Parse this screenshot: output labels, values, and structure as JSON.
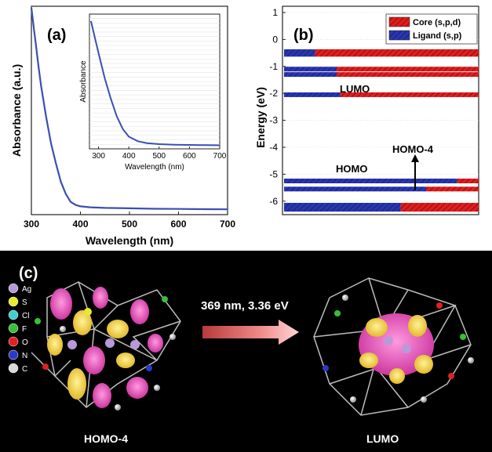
{
  "chart_data": [
    {
      "panel_label": "(a)",
      "type": "line",
      "xlabel": "Wavelength (nm)",
      "ylabel": "Absorbance (a.u.)",
      "xlim": [
        300,
        700
      ],
      "x_ticks": [
        "300",
        "400",
        "500",
        "600",
        "700"
      ],
      "color": "#3a4fb4",
      "series": [
        {
          "x": [
            300,
            305,
            310,
            315,
            320,
            330,
            340,
            350,
            360,
            370,
            380,
            390,
            400,
            420,
            450,
            500,
            550,
            600,
            650,
            700
          ],
          "y": [
            1.0,
            0.9,
            0.8,
            0.7,
            0.61,
            0.46,
            0.33,
            0.23,
            0.14,
            0.08,
            0.04,
            0.025,
            0.018,
            0.013,
            0.01,
            0.008,
            0.006,
            0.005,
            0.004,
            0.003
          ]
        }
      ],
      "inset": {
        "xlabel": "Wavelength (nm)",
        "ylabel": "Absorbance",
        "xlim": [
          270,
          700
        ],
        "x_ticks": [
          "300",
          "400",
          "500",
          "600",
          "700"
        ],
        "series": [
          {
            "x": [
              275,
              290,
              300,
              320,
              340,
              360,
              380,
              400,
              430,
              460,
              500,
              550,
              600,
              650,
              700
            ],
            "y": [
              0.97,
              0.82,
              0.72,
              0.53,
              0.37,
              0.23,
              0.13,
              0.07,
              0.035,
              0.02,
              0.012,
              0.008,
              0.006,
              0.004,
              0.003
            ]
          }
        ]
      }
    },
    {
      "panel_label": "(b)",
      "type": "bar",
      "ylabel": "Energy (eV)",
      "ylim": [
        -6.5,
        1
      ],
      "y_ticks": [
        "1",
        "0",
        "-1",
        "-2",
        "-3",
        "-4",
        "-5",
        "-6"
      ],
      "legend": [
        {
          "name": "Core (s,p,d)",
          "color": "#e01e1e"
        },
        {
          "name": "Ligand (s,p)",
          "color": "#2a36b0"
        }
      ],
      "legend_placement": "top-right",
      "levels": [
        {
          "energy": -0.45,
          "ligand_fraction": 0.16
        },
        {
          "energy": -0.55,
          "ligand_fraction": 0.16
        },
        {
          "energy": -1.1,
          "ligand_fraction": 0.27
        },
        {
          "energy": -1.3,
          "ligand_fraction": 0.27
        },
        {
          "energy": -2.05,
          "ligand_fraction": 0.29
        },
        {
          "energy": -5.25,
          "ligand_fraction": 0.89
        },
        {
          "energy": -5.55,
          "ligand_fraction": 0.73
        },
        {
          "energy": -6.15,
          "ligand_fraction": 0.6
        },
        {
          "energy": -6.3,
          "ligand_fraction": 0.6
        }
      ],
      "annotations": {
        "lumo": "LUMO",
        "homo": "HOMO",
        "homo4": "HOMO-4"
      }
    }
  ],
  "panel_c": {
    "label": "(c)",
    "transition": "369 nm, 3.36 eV",
    "left_caption": "HOMO-4",
    "right_caption": "LUMO",
    "atom_legend": [
      {
        "symbol": "Ag",
        "color": "#b89ad8"
      },
      {
        "symbol": "S",
        "color": "#e8e830"
      },
      {
        "symbol": "Cl",
        "color": "#3cd0d0"
      },
      {
        "symbol": "F",
        "color": "#38c038"
      },
      {
        "symbol": "O",
        "color": "#e02020"
      },
      {
        "symbol": "N",
        "color": "#2a3ac8"
      },
      {
        "symbol": "C",
        "color": "#d8d8d8"
      }
    ]
  }
}
